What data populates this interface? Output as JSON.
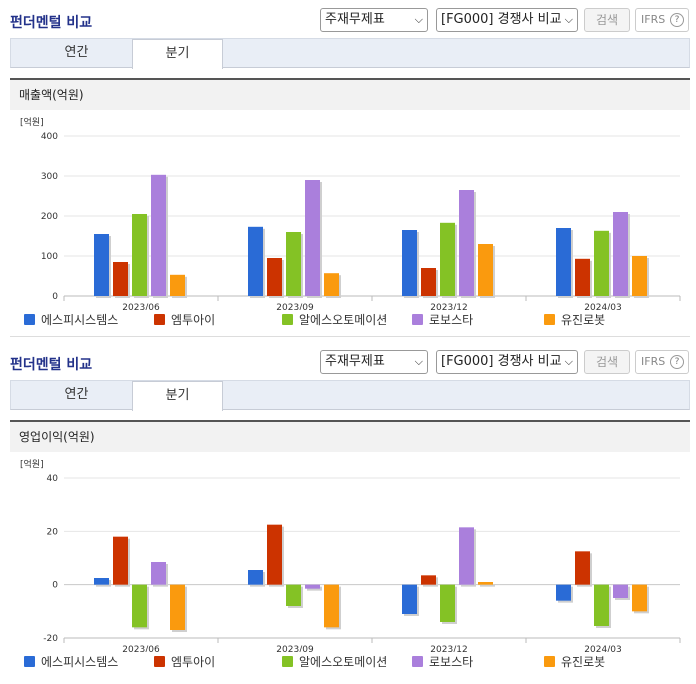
{
  "panels": [
    {
      "title": "펀더멘털 비교",
      "select1": "주재무제표",
      "select2": "[FG000] 경쟁사 비교",
      "search_label": "검색",
      "ifrs_label": "IFRS",
      "help_label": "?",
      "tabs": [
        "연간",
        "분기"
      ],
      "section": "매출액(억원)"
    },
    {
      "title": "펀더멘털 비교",
      "select1": "주재무제표",
      "select2": "[FG000] 경쟁사 비교",
      "search_label": "검색",
      "ifrs_label": "IFRS",
      "help_label": "?",
      "tabs": [
        "연간",
        "분기"
      ],
      "section": "영업이익(억원)"
    }
  ],
  "colors": [
    "#2a6bd6",
    "#cc3300",
    "#84c225",
    "#aa7fdc",
    "#fa9a0e"
  ],
  "chart_data": [
    {
      "type": "bar",
      "unit_label": "[억원]",
      "categories": [
        "2023/06",
        "2023/09",
        "2023/12",
        "2024/03"
      ],
      "ylim": [
        0,
        400
      ],
      "yticks": [
        0,
        100,
        200,
        300,
        400
      ],
      "grid": true,
      "legend": "bottom",
      "series": [
        {
          "name": "에스피시스템스",
          "values": [
            155,
            173,
            165,
            170
          ]
        },
        {
          "name": "엠투아이",
          "values": [
            85,
            95,
            70,
            93
          ]
        },
        {
          "name": "알에스오토메이션",
          "values": [
            205,
            160,
            183,
            163
          ]
        },
        {
          "name": "로보스타",
          "values": [
            303,
            290,
            265,
            210
          ]
        },
        {
          "name": "유진로봇",
          "values": [
            53,
            57,
            130,
            100
          ]
        }
      ]
    },
    {
      "type": "bar",
      "unit_label": "[억원]",
      "categories": [
        "2023/06",
        "2023/09",
        "2023/12",
        "2024/03"
      ],
      "ylim": [
        -20,
        40
      ],
      "yticks": [
        -20,
        0,
        20,
        40
      ],
      "grid": true,
      "legend": "bottom",
      "series": [
        {
          "name": "에스피시스템스",
          "values": [
            2.5,
            5.5,
            -11,
            -6
          ]
        },
        {
          "name": "엠투아이",
          "values": [
            18,
            22.5,
            3.5,
            12.5
          ]
        },
        {
          "name": "알에스오토메이션",
          "values": [
            -16,
            -8,
            -14,
            -15.5
          ]
        },
        {
          "name": "로보스타",
          "values": [
            8.5,
            -1.5,
            21.5,
            -5
          ]
        },
        {
          "name": "유진로봇",
          "values": [
            -17,
            -16,
            1,
            -10
          ]
        }
      ]
    }
  ]
}
